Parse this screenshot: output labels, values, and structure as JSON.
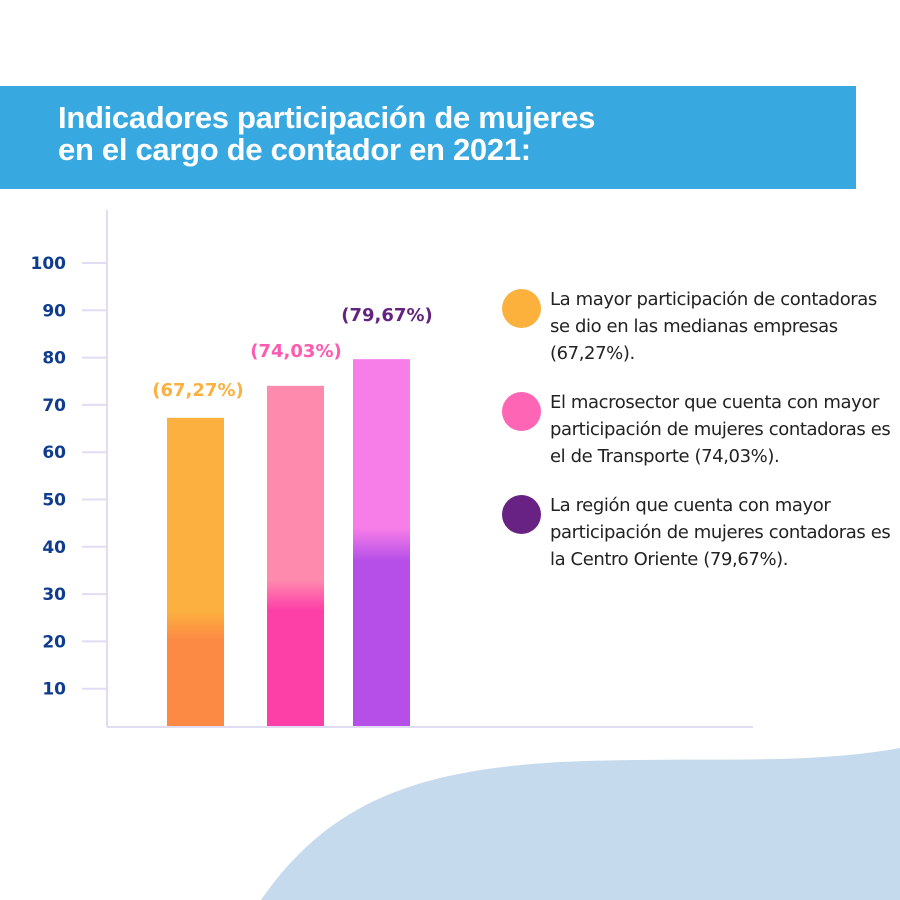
{
  "header": {
    "title_line1": "Indicadores participación de mujeres",
    "title_line2": "en el cargo de contador en 2021:"
  },
  "colors": {
    "banner": "#38a9e0",
    "axis": "#e2dcf3",
    "tick_text": "#0f3c8c",
    "blob": "#c6daee"
  },
  "chart_data": {
    "type": "bar",
    "title": "Indicadores participación de mujeres en el cargo de contador en 2021:",
    "xlabel": "",
    "ylabel": "",
    "ylim": [
      0,
      100
    ],
    "yticks": [
      10,
      20,
      30,
      40,
      50,
      60,
      70,
      80,
      90,
      100
    ],
    "ytick_labels": [
      "10",
      "20",
      "30",
      "40",
      "50",
      "60",
      "70",
      "80",
      "90",
      "100"
    ],
    "grid": false,
    "categories": [
      "Medianas empresas",
      "Macrosector Transporte",
      "Región Centro Oriente"
    ],
    "values": [
      67.27,
      74.03,
      79.67
    ],
    "data_labels": [
      "(67,27%)",
      "(74,03%)",
      "(79,67%)"
    ],
    "bar_colors": [
      {
        "top": "#fbb040",
        "bottom": "#fd8a44",
        "label": "#fbb040"
      },
      {
        "top": "#fe8bae",
        "bottom": "#fd3fa8",
        "label": "#fe5aaf"
      },
      {
        "top": "#f77ee8",
        "bottom": "#b64fe8",
        "label": "#63247f"
      }
    ],
    "legend_placement": "right"
  },
  "legend": [
    {
      "color": "#fbb13c",
      "text": "La mayor participación de contadoras se dio en las medianas empresas (67,27%)."
    },
    {
      "color": "#fe66b5",
      "text": "El macrosector que cuenta con mayor participación de mujeres contadoras es el de Transporte (74,03%)."
    },
    {
      "color": "#682283",
      "text": "La región que cuenta con mayor participación de mujeres contadoras es la Centro Oriente (79,67%)."
    }
  ]
}
